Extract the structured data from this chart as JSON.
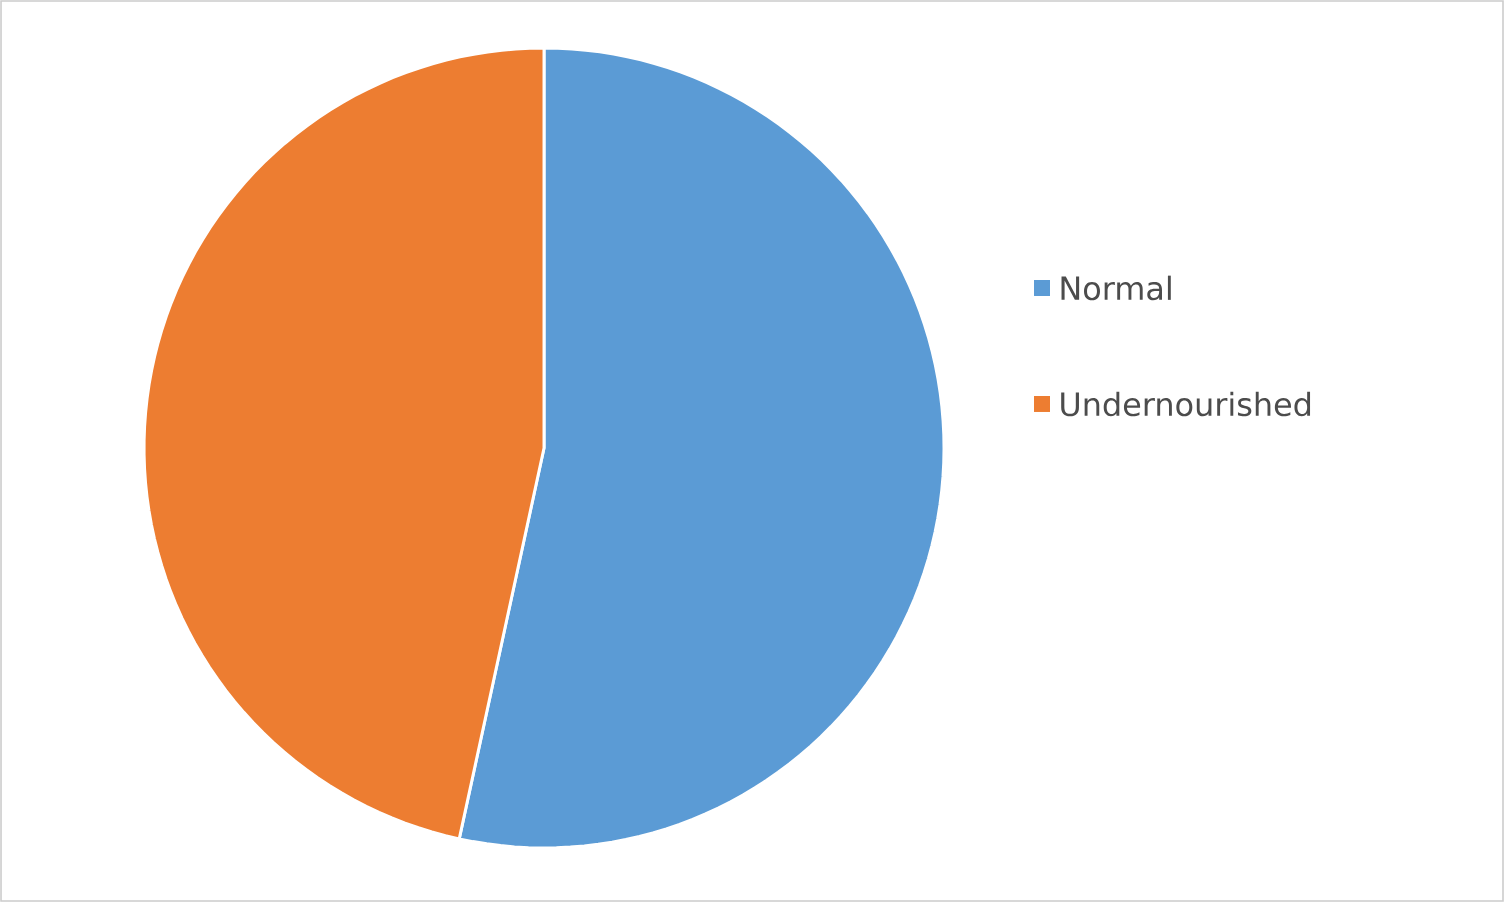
{
  "chart_data": {
    "type": "pie",
    "categories": [
      "Normal",
      "Undernourished"
    ],
    "values": [
      53.4,
      46.6
    ],
    "colors": [
      "#5b9bd5",
      "#ed7d31"
    ],
    "legend": "right"
  }
}
